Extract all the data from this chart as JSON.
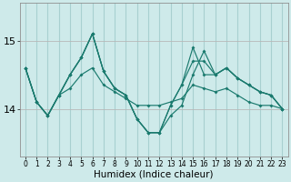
{
  "x": [
    0,
    1,
    2,
    3,
    4,
    5,
    6,
    7,
    8,
    9,
    10,
    11,
    12,
    13,
    14,
    15,
    16,
    17,
    18,
    19,
    20,
    21,
    22,
    23
  ],
  "lines": [
    [
      14.6,
      14.1,
      13.9,
      14.2,
      14.3,
      14.5,
      14.6,
      14.35,
      14.25,
      14.15,
      14.05,
      14.05,
      14.05,
      14.1,
      14.15,
      14.35,
      14.3,
      14.25,
      14.3,
      14.2,
      14.1,
      14.05,
      14.05,
      14.0
    ],
    [
      14.6,
      14.1,
      13.9,
      14.2,
      14.5,
      14.75,
      15.1,
      14.55,
      14.3,
      14.2,
      13.85,
      13.65,
      13.65,
      13.9,
      14.05,
      14.5,
      14.85,
      14.5,
      14.6,
      14.45,
      14.35,
      14.25,
      14.2,
      14.0
    ],
    [
      14.6,
      14.1,
      13.9,
      14.2,
      14.5,
      14.75,
      15.1,
      14.55,
      14.3,
      14.2,
      13.85,
      13.65,
      13.65,
      14.05,
      14.35,
      14.7,
      14.7,
      14.5,
      14.6,
      14.45,
      14.35,
      14.25,
      14.2,
      14.0
    ],
    [
      14.6,
      14.1,
      13.9,
      14.2,
      14.5,
      14.75,
      15.1,
      14.55,
      14.3,
      14.2,
      13.85,
      13.65,
      13.65,
      14.05,
      14.35,
      14.9,
      14.5,
      14.5,
      14.6,
      14.45,
      14.35,
      14.25,
      14.2,
      14.0
    ]
  ],
  "bg_color": "#ceeaea",
  "line_color": "#1a7a6e",
  "grid_color_v": "#a8d0d0",
  "grid_color_h": "#b8b8b8",
  "yticks": [
    14,
    15
  ],
  "ylim": [
    13.3,
    15.55
  ],
  "xlim": [
    -0.5,
    23.5
  ],
  "xlabel": "Humidex (Indice chaleur)",
  "xlabel_fontsize": 7.5,
  "ytick_fontsize": 8,
  "xtick_fontsize": 5.5
}
